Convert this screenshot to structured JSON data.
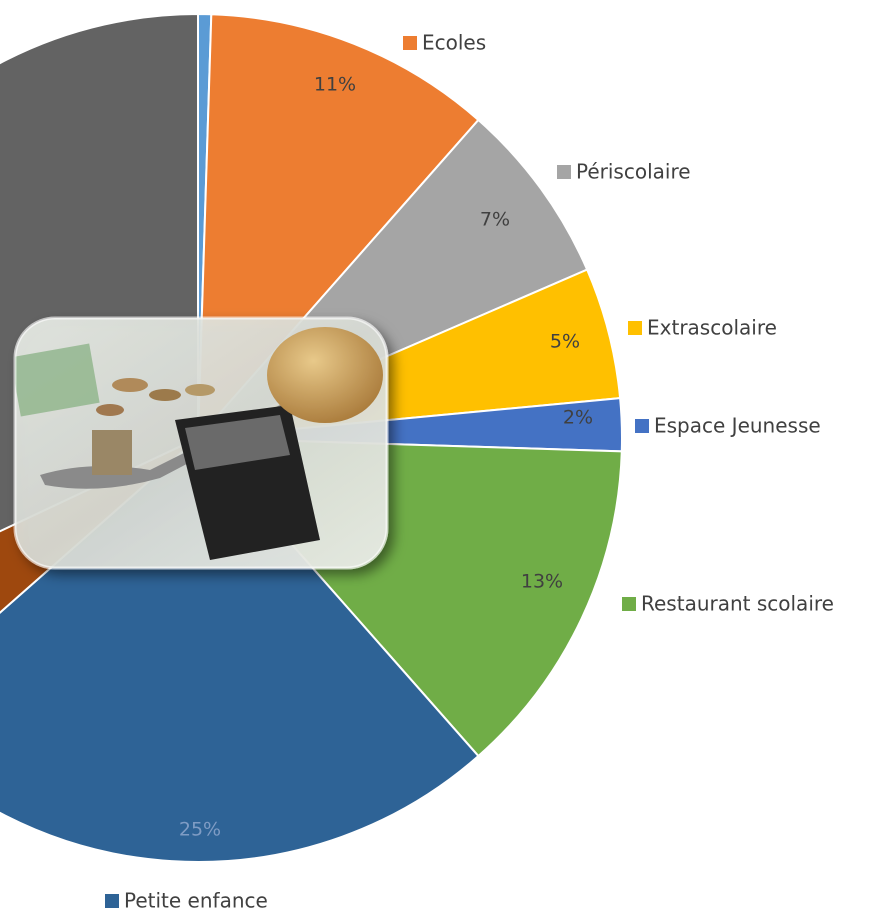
{
  "chart_data": {
    "type": "pie",
    "categories": [
      null,
      "Ecoles",
      "Périscolaire",
      "Extrascolaire",
      "Espace Jeunesse",
      "Restaurant scolaire",
      "Petite enfance",
      null,
      null
    ],
    "values": [
      0.5,
      11,
      7,
      5,
      2,
      13,
      25,
      4.5,
      32
    ],
    "value_labels": [
      null,
      "11%",
      "7%",
      "5%",
      "2%",
      "13%",
      "25%",
      null,
      null
    ],
    "colors": [
      "#5b9bd5",
      "#ed7d31",
      "#a5a5a5",
      "#ffc000",
      "#4472c4",
      "#70ad47",
      "#2e6396",
      "#9e480e",
      "#636363"
    ]
  }
}
